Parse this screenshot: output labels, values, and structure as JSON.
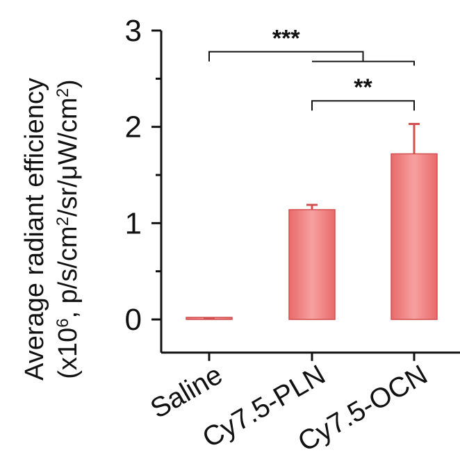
{
  "chart_data": {
    "type": "bar",
    "categories": [
      "Saline",
      "Cy7.5-PLN",
      "Cy7.5-OCN"
    ],
    "values": [
      0.0,
      1.14,
      1.72
    ],
    "errors": [
      0.01,
      0.05,
      0.31
    ],
    "ylabel_line1": "Average radiant efficiency",
    "ylabel_line2_prefix": "(x10",
    "ylabel_line2_exp": "6",
    "ylabel_line2_mid": ", p/s/cm",
    "ylabel_line2_exp2": "2",
    "ylabel_line2_mid2": "/sr/μW/cm",
    "ylabel_line2_exp3": "2",
    "ylabel_line2_suffix": ")",
    "ylim": [
      -0.2,
      3
    ],
    "yticks": [
      0,
      1,
      2,
      3
    ],
    "ytick_labels": [
      "0",
      "1",
      "2",
      "3"
    ],
    "bar_color": "#f08080",
    "significance": [
      {
        "label": "***",
        "from": 0,
        "to": [
          1,
          2
        ],
        "y": 2.78
      },
      {
        "label": "**",
        "from": 1,
        "to": 2,
        "y": 2.27
      }
    ],
    "grid": false
  }
}
